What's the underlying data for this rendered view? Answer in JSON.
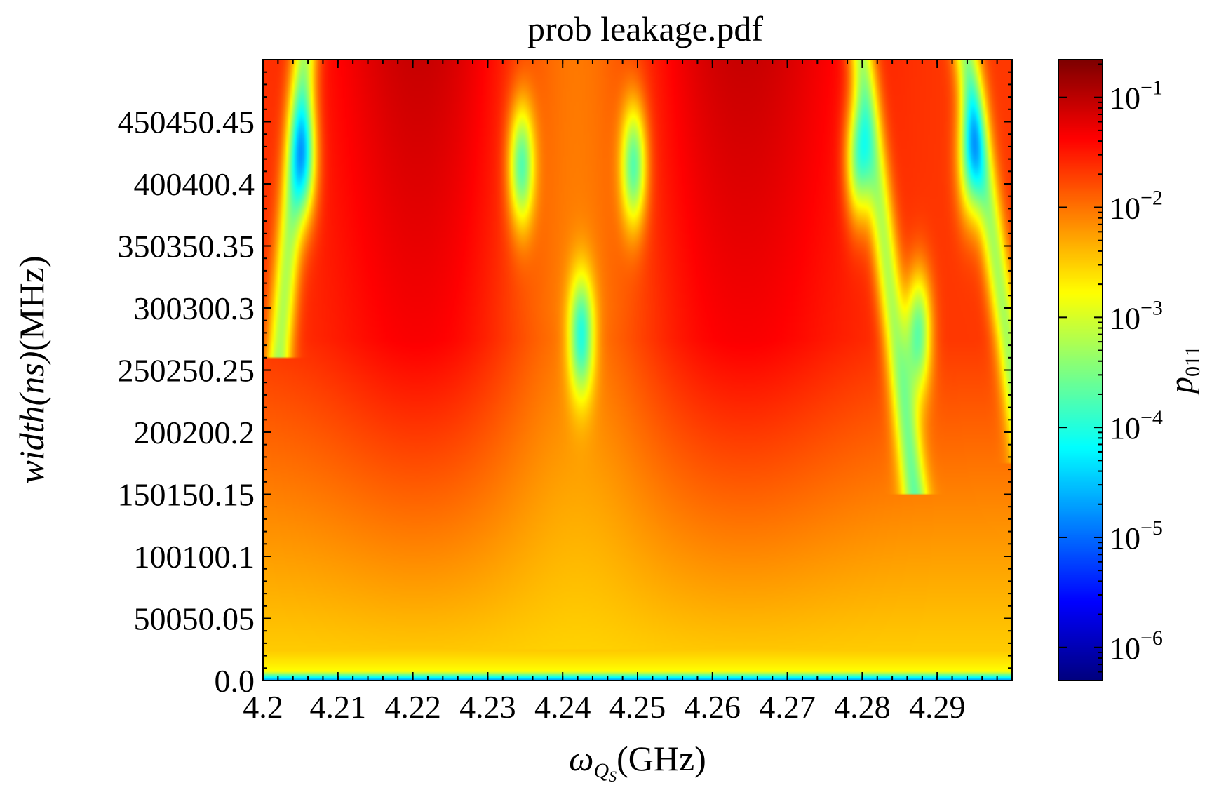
{
  "chart_data": {
    "type": "heatmap",
    "title": "prob leakage.pdf",
    "xlabel_main": "ω",
    "xlabel_sub": "Q",
    "xlabel_subsub": "S",
    "xlabel_unit": "(GHz)",
    "ylabel_italic": "width(ns)",
    "ylabel_unit": "(MHz)",
    "colorbar_label_main": "p",
    "colorbar_label_sub": "011",
    "x_ticks": [
      "4.2",
      "4.21",
      "4.22",
      "4.23",
      "4.24",
      "4.25",
      "4.26",
      "4.27",
      "4.28",
      "4.29"
    ],
    "x_tick_values": [
      4.2,
      4.21,
      4.22,
      4.23,
      4.24,
      4.25,
      4.26,
      4.27,
      4.28,
      4.29
    ],
    "y_ticks": [
      "0.0",
      "50050.05",
      "100100.1",
      "150150.15",
      "200200.2",
      "250250.25",
      "300300.3",
      "350350.35",
      "400400.4",
      "450450.45"
    ],
    "y_tick_values": [
      0,
      50,
      100,
      150,
      200,
      250,
      300,
      350,
      400,
      450
    ],
    "xlim": [
      4.2,
      4.3
    ],
    "ylim": [
      0,
      500
    ],
    "colorbar": {
      "scale": "log",
      "range": [
        5e-07,
        0.22
      ],
      "ticks": [
        {
          "base": "10",
          "exp": "−1",
          "value": 0.1
        },
        {
          "base": "10",
          "exp": "−2",
          "value": 0.01
        },
        {
          "base": "10",
          "exp": "−3",
          "value": 0.001
        },
        {
          "base": "10",
          "exp": "−4",
          "value": 0.0001
        },
        {
          "base": "10",
          "exp": "−5",
          "value": 1e-05
        },
        {
          "base": "10",
          "exp": "−6",
          "value": 1e-06
        }
      ],
      "colormap": "jet"
    },
    "minima_points": [
      {
        "x": 4.2055,
        "y": 420
      },
      {
        "x": 4.2345,
        "y": 415
      },
      {
        "x": 4.2425,
        "y": 278
      },
      {
        "x": 4.2495,
        "y": 415
      },
      {
        "x": 4.2795,
        "y": 420
      },
      {
        "x": 4.2875,
        "y": 280
      },
      {
        "x": 4.2945,
        "y": 422
      }
    ],
    "grid": false
  }
}
